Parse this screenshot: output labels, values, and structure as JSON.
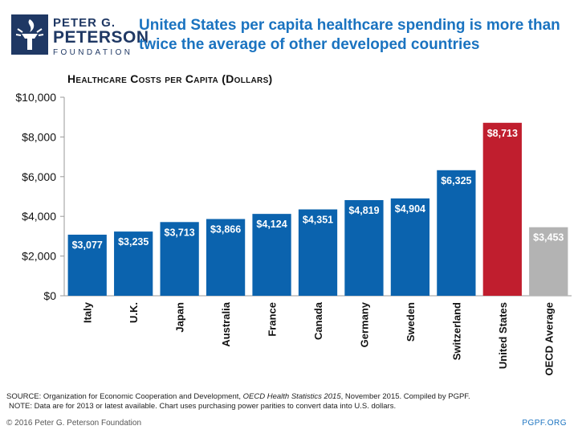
{
  "header": {
    "logo_line1": "PETER G.",
    "logo_line2": "PETERSON",
    "logo_line3": "FOUNDATION",
    "headline": "United States per capita healthcare spending is more than twice the average of other developed countries"
  },
  "chart_data": {
    "type": "bar",
    "title": "Healthcare Costs per Capita (Dollars)",
    "categories": [
      "Italy",
      "U.K.",
      "Japan",
      "Australia",
      "France",
      "Canada",
      "Germany",
      "Sweden",
      "Switzerland",
      "United States",
      "OECD Average"
    ],
    "values": [
      3077,
      3235,
      3713,
      3866,
      4124,
      4351,
      4819,
      4904,
      6325,
      8713,
      3453
    ],
    "value_labels": [
      "$3,077",
      "$3,235",
      "$3,713",
      "$3,866",
      "$4,124",
      "$4,351",
      "$4,819",
      "$4,904",
      "$6,325",
      "$8,713",
      "$3,453"
    ],
    "bar_colors": [
      "#0b63ae",
      "#0b63ae",
      "#0b63ae",
      "#0b63ae",
      "#0b63ae",
      "#0b63ae",
      "#0b63ae",
      "#0b63ae",
      "#0b63ae",
      "#c01e2e",
      "#b3b3b3"
    ],
    "ylim": [
      0,
      10000
    ],
    "yticks": [
      0,
      2000,
      4000,
      6000,
      8000,
      10000
    ],
    "ytick_labels": [
      "$0",
      "$2,000",
      "$4,000",
      "$6,000",
      "$8,000",
      "$10,000"
    ],
    "grid": false,
    "legend": "none"
  },
  "footer": {
    "source_prefix": "SOURCE: Organization for Economic Cooperation and Development, ",
    "source_italic": "OECD Health Statistics 2015",
    "source_suffix": ", November 2015. Compiled by PGPF.",
    "note": "NOTE: Data are for 2013 or latest available. Chart uses purchasing power parities to convert data into U.S. dollars.",
    "copyright": "© 2016 Peter G. Peterson Foundation",
    "site": "PGPF.ORG"
  }
}
